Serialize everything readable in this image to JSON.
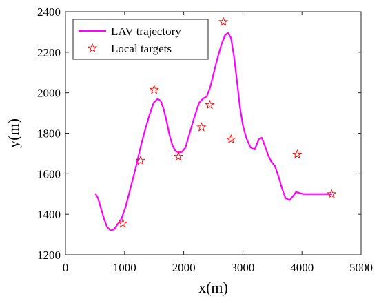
{
  "chart_data": {
    "type": "line",
    "xlabel": "x(m)",
    "ylabel": "y(m)",
    "xlim": [
      0,
      5000
    ],
    "ylim": [
      1200,
      2400
    ],
    "xticks": [
      "0",
      "1000",
      "2000",
      "3000",
      "4000",
      "5000"
    ],
    "yticks": [
      "1200",
      "1400",
      "1600",
      "1800",
      "2000",
      "2200",
      "2400"
    ],
    "grid": false,
    "legend_position": "top-left",
    "series": [
      {
        "name": "LAV trajectory",
        "kind": "line",
        "color": "#ff00ff",
        "points": [
          [
            510,
            1500
          ],
          [
            550,
            1480
          ],
          [
            600,
            1430
          ],
          [
            650,
            1380
          ],
          [
            700,
            1340
          ],
          [
            760,
            1320
          ],
          [
            820,
            1325
          ],
          [
            880,
            1350
          ],
          [
            950,
            1380
          ],
          [
            1020,
            1440
          ],
          [
            1100,
            1530
          ],
          [
            1180,
            1620
          ],
          [
            1260,
            1720
          ],
          [
            1340,
            1810
          ],
          [
            1420,
            1890
          ],
          [
            1490,
            1950
          ],
          [
            1560,
            1970
          ],
          [
            1610,
            1960
          ],
          [
            1660,
            1920
          ],
          [
            1710,
            1860
          ],
          [
            1760,
            1790
          ],
          [
            1810,
            1740
          ],
          [
            1860,
            1712
          ],
          [
            1920,
            1705
          ],
          [
            1970,
            1708
          ],
          [
            2030,
            1730
          ],
          [
            2100,
            1800
          ],
          [
            2180,
            1880
          ],
          [
            2260,
            1950
          ],
          [
            2330,
            1972
          ],
          [
            2390,
            1982
          ],
          [
            2450,
            2030
          ],
          [
            2510,
            2100
          ],
          [
            2570,
            2170
          ],
          [
            2640,
            2240
          ],
          [
            2700,
            2285
          ],
          [
            2750,
            2295
          ],
          [
            2800,
            2270
          ],
          [
            2850,
            2180
          ],
          [
            2900,
            2060
          ],
          [
            2950,
            1930
          ],
          [
            3000,
            1840
          ],
          [
            3060,
            1775
          ],
          [
            3130,
            1730
          ],
          [
            3200,
            1720
          ],
          [
            3270,
            1770
          ],
          [
            3320,
            1778
          ],
          [
            3370,
            1740
          ],
          [
            3430,
            1690
          ],
          [
            3480,
            1660
          ],
          [
            3540,
            1640
          ],
          [
            3600,
            1590
          ],
          [
            3660,
            1530
          ],
          [
            3720,
            1480
          ],
          [
            3790,
            1470
          ],
          [
            3850,
            1490
          ],
          [
            3900,
            1510
          ],
          [
            3960,
            1505
          ],
          [
            4020,
            1500
          ],
          [
            4500,
            1500
          ]
        ]
      },
      {
        "name": "Local targets",
        "kind": "marker",
        "marker": "pentagram",
        "color": "#ff0000",
        "points": [
          [
            970,
            1355
          ],
          [
            1270,
            1665
          ],
          [
            1500,
            2015
          ],
          [
            1910,
            1685
          ],
          [
            2300,
            1830
          ],
          [
            2440,
            1940
          ],
          [
            2670,
            2350
          ],
          [
            2800,
            1770
          ],
          [
            3920,
            1695
          ],
          [
            4500,
            1500
          ]
        ]
      }
    ]
  }
}
